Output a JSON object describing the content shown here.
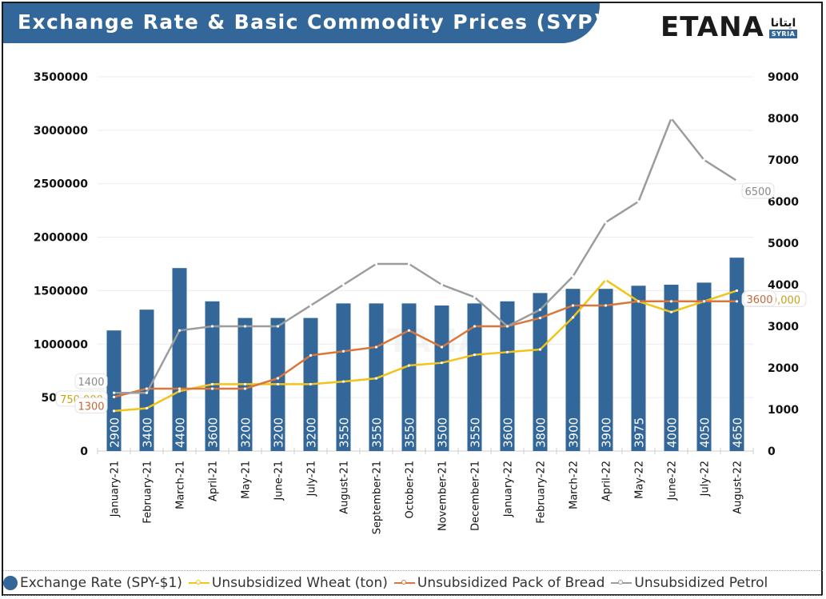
{
  "header": {
    "title": "Exchange Rate & Basic Commodity Prices (SYP)",
    "logo_text": "ETANA",
    "logo_arabic": "ايتانا",
    "logo_badge": "SYRIA"
  },
  "colors": {
    "title_bar": "#336699",
    "bars": "#336699",
    "wheat": "#f2c418",
    "bread": "#d9773a",
    "petrol": "#9c9c9c"
  },
  "chart_data": {
    "type": "bar+line",
    "title": "Exchange Rate & Basic Commodity Prices (SYP)",
    "categories": [
      "January-21",
      "February-21",
      "March-21",
      "April-21",
      "May-21",
      "June-21",
      "July-21",
      "August-21",
      "September-21",
      "October-21",
      "November-21",
      "December-21",
      "January-22",
      "February-22",
      "March-22",
      "April-22",
      "May-22",
      "June-22",
      "July-22",
      "August-22"
    ],
    "left_axis": {
      "ticks": [
        "0",
        "500000",
        "1000000",
        "1500000",
        "2000000",
        "2500000",
        "3000000",
        "3500000"
      ],
      "range": [
        0,
        3500000
      ]
    },
    "right_axis": {
      "ticks": [
        "0",
        "1000",
        "2000",
        "3000",
        "4000",
        "5000",
        "6000",
        "7000",
        "8000",
        "9000"
      ],
      "range": [
        0,
        9000
      ]
    },
    "grid": true,
    "legend_position": "bottom",
    "series": [
      {
        "name": "Exchange Rate (SPY-$1)",
        "type": "bar",
        "axis": "right",
        "values": [
          2900,
          3400,
          4400,
          3600,
          3200,
          3200,
          3200,
          3550,
          3550,
          3550,
          3500,
          3550,
          3600,
          3800,
          3900,
          3900,
          3975,
          4000,
          4050,
          4650
        ]
      },
      {
        "name": "Unsubsidized Wheat (ton)",
        "type": "line",
        "axis": "left",
        "plot_scale": 0.5,
        "values": [
          750000,
          800000,
          1120000,
          1250000,
          1250000,
          1250000,
          1250000,
          1300000,
          1360000,
          1600000,
          1650000,
          1800000,
          1850000,
          1900000,
          2500000,
          3200000,
          2800000,
          2600000,
          2800000,
          3000000
        ],
        "callouts": {
          "first": "750,000",
          "last": "3,000,000"
        }
      },
      {
        "name": "Unsubsidized Pack of Bread",
        "type": "line",
        "axis": "right",
        "values": [
          1300,
          1500,
          1500,
          1500,
          1500,
          1750,
          2300,
          2400,
          2500,
          2900,
          2500,
          3000,
          3000,
          3200,
          3500,
          3500,
          3600,
          3600,
          3600,
          3600
        ],
        "callouts": {
          "first": "1300",
          "last": "3600"
        }
      },
      {
        "name": "Unsubsidized Petrol",
        "type": "line",
        "axis": "right",
        "values": [
          1400,
          1400,
          2900,
          3000,
          3000,
          3000,
          3500,
          4000,
          4500,
          4500,
          4000,
          3700,
          3000,
          3400,
          4200,
          5500,
          6000,
          8000,
          7000,
          6500
        ],
        "callouts": {
          "first": "1400",
          "last": "6500"
        }
      }
    ]
  },
  "legend": [
    {
      "label": "Exchange Rate (SPY-$1)",
      "marker": "circle-icon"
    },
    {
      "label": "Unsubsidized Wheat (ton)",
      "marker": "line-marker-icon"
    },
    {
      "label": "Unsubsidized Pack of Bread",
      "marker": "line-marker-icon"
    },
    {
      "label": "Unsubsidized Petrol",
      "marker": "line-marker-icon"
    }
  ]
}
